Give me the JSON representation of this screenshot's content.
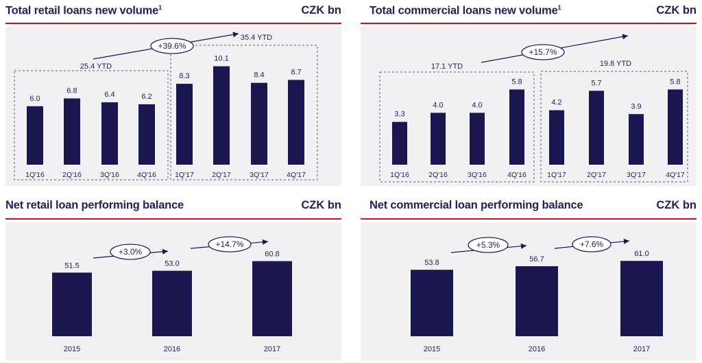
{
  "colors": {
    "bar": "#1a1650",
    "title": "#23205a",
    "rule": "#c8102e",
    "panel_bg": "#f1f1f3"
  },
  "chart_data": [
    {
      "type": "bar",
      "title": "Total retail loans new volume",
      "title_sup": "1",
      "unit": "CZK bn",
      "categories": [
        "1Q'16",
        "2Q'16",
        "3Q'16",
        "4Q'16",
        "1Q'17",
        "2Q'17",
        "3Q'17",
        "4Q'17"
      ],
      "values": [
        6.0,
        6.8,
        6.4,
        6.2,
        8.3,
        10.1,
        8.4,
        8.7
      ],
      "value_labels": [
        "6.0",
        "6.8",
        "6.4",
        "6.2",
        "8.3",
        "10.1",
        "8.4",
        "8.7"
      ],
      "groups": [
        {
          "label": "25.4 YTD",
          "start": 0,
          "end": 3
        },
        {
          "label": "35.4 YTD",
          "start": 4,
          "end": 7
        }
      ],
      "growth": "+39.6%"
    },
    {
      "type": "bar",
      "title": "Total commercial loans new volume",
      "title_sup": "1",
      "unit": "CZK bn",
      "categories": [
        "1Q'16",
        "2Q'16",
        "3Q'16",
        "4Q'16",
        "1Q'17",
        "2Q'17",
        "3Q'17",
        "4Q'17"
      ],
      "values": [
        3.3,
        4.0,
        4.0,
        5.8,
        4.2,
        5.7,
        3.9,
        5.8
      ],
      "value_labels": [
        "3.3",
        "4.0",
        "4.0",
        "5.8",
        "4.2",
        "5.7",
        "3.9",
        "5.8"
      ],
      "groups": [
        {
          "label": "17.1 YTD",
          "start": 0,
          "end": 3
        },
        {
          "label": "19.8 YTD",
          "start": 4,
          "end": 7
        }
      ],
      "growth": "+15.7%"
    },
    {
      "type": "bar",
      "title": "Net retail loan performing balance",
      "unit": "CZK bn",
      "categories": [
        "2015",
        "2016",
        "2017"
      ],
      "values": [
        51.5,
        53.0,
        60.8
      ],
      "value_labels": [
        "51.5",
        "53.0",
        "60.8"
      ],
      "growth": [
        "+3.0%",
        "+14.7%"
      ]
    },
    {
      "type": "bar",
      "title": "Net commercial loan performing balance",
      "unit": "CZK bn",
      "categories": [
        "2015",
        "2016",
        "2017"
      ],
      "values": [
        53.8,
        56.7,
        61.0
      ],
      "value_labels": [
        "53.8",
        "56.7",
        "61.0"
      ],
      "growth": [
        "+5.3%",
        "+7.6%"
      ]
    }
  ]
}
